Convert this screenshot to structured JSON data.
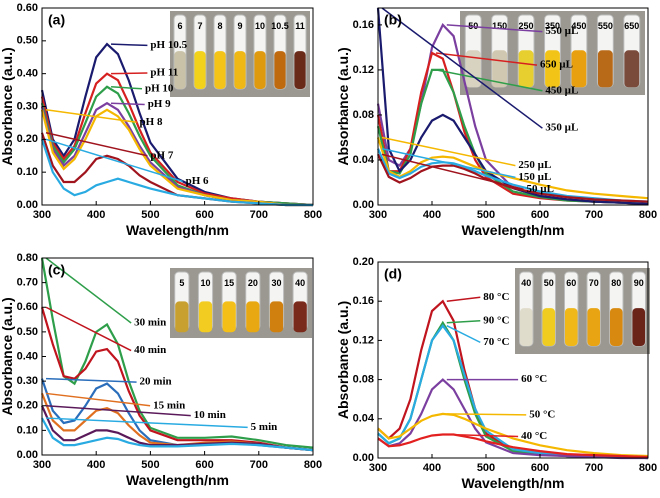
{
  "chart_data": [
    {
      "type": "line",
      "label": "(a)",
      "y_label": "Absorbance (a.u.)",
      "x_label": "Wavelength/nm",
      "inset_labels": [
        "6",
        "7",
        "8",
        "9",
        "10",
        "10.5",
        "11"
      ],
      "x": [
        300,
        320,
        340,
        360,
        380,
        400,
        420,
        440,
        460,
        480,
        500,
        550,
        600,
        650,
        700,
        750,
        800
      ],
      "xlim": [
        300,
        800
      ],
      "xticks": [
        300,
        400,
        500,
        600,
        700,
        800
      ],
      "ylim": [
        0,
        0.6
      ],
      "yticks": [
        {
          "value": 0,
          "label": "0.00"
        },
        {
          "value": 0.1,
          "label": "0.10"
        },
        {
          "value": 0.2,
          "label": "0.20"
        },
        {
          "value": 0.3,
          "label": "0.30"
        },
        {
          "value": 0.4,
          "label": "0.40"
        },
        {
          "value": 0.5,
          "label": "0.50"
        },
        {
          "value": 0.6,
          "label": "0.60"
        }
      ],
      "series": [
        {
          "name": "pH 10.5",
          "color": "#1a1a6e",
          "values": [
            0.35,
            0.2,
            0.15,
            0.2,
            0.33,
            0.45,
            0.49,
            0.46,
            0.38,
            0.28,
            0.19,
            0.08,
            0.04,
            0.02,
            0.01,
            0.005,
            0
          ]
        },
        {
          "name": "pH 11",
          "color": "#d62020",
          "values": [
            0.33,
            0.19,
            0.14,
            0.18,
            0.28,
            0.37,
            0.4,
            0.38,
            0.31,
            0.23,
            0.16,
            0.07,
            0.035,
            0.02,
            0.01,
            0.005,
            0
          ]
        },
        {
          "name": "pH 10",
          "color": "#2e9e4a",
          "values": [
            0.31,
            0.18,
            0.13,
            0.17,
            0.25,
            0.33,
            0.36,
            0.34,
            0.28,
            0.21,
            0.15,
            0.06,
            0.03,
            0.015,
            0.01,
            0.005,
            0
          ]
        },
        {
          "name": "pH 9",
          "color": "#7b3fa0",
          "values": [
            0.3,
            0.17,
            0.12,
            0.15,
            0.22,
            0.29,
            0.31,
            0.29,
            0.24,
            0.18,
            0.13,
            0.055,
            0.03,
            0.015,
            0.01,
            0,
            0
          ]
        },
        {
          "name": "pH 8",
          "color": "#f5b800",
          "values": [
            0.29,
            0.16,
            0.11,
            0.14,
            0.2,
            0.27,
            0.29,
            0.27,
            0.23,
            0.17,
            0.12,
            0.05,
            0.03,
            0.015,
            0.01,
            0,
            0
          ]
        },
        {
          "name": "pH 7",
          "color": "#a0141e",
          "values": [
            0.22,
            0.12,
            0.07,
            0.07,
            0.1,
            0.14,
            0.15,
            0.14,
            0.12,
            0.09,
            0.07,
            0.03,
            0.02,
            0.01,
            0.005,
            0,
            0
          ]
        },
        {
          "name": "pH 6",
          "color": "#29abe2",
          "values": [
            0.2,
            0.1,
            0.05,
            0.03,
            0.04,
            0.06,
            0.07,
            0.08,
            0.07,
            0.06,
            0.05,
            0.03,
            0.02,
            0.01,
            0.005,
            0,
            0
          ]
        }
      ]
    },
    {
      "type": "line",
      "label": "(b)",
      "y_label": "Absorbance (a.u.)",
      "x_label": "Wavelength/nm",
      "inset_labels": [
        "50",
        "150",
        "250",
        "350",
        "450",
        "550",
        "650"
      ],
      "x": [
        300,
        320,
        340,
        360,
        380,
        400,
        420,
        440,
        460,
        480,
        500,
        550,
        600,
        650,
        700,
        750,
        800
      ],
      "xlim": [
        300,
        800
      ],
      "xticks": [
        300,
        400,
        500,
        600,
        700,
        800
      ],
      "ylim": [
        0,
        0.175
      ],
      "yticks": [
        {
          "value": 0,
          "label": "0.00"
        },
        {
          "value": 0.04,
          "label": "0.04"
        },
        {
          "value": 0.08,
          "label": "0.08"
        },
        {
          "value": 0.12,
          "label": "0.12"
        },
        {
          "value": 0.16,
          "label": "0.16"
        }
      ],
      "series": [
        {
          "name": "550 µL",
          "color": "#7b3fa0",
          "values": [
            0.09,
            0.04,
            0.035,
            0.05,
            0.09,
            0.14,
            0.16,
            0.15,
            0.11,
            0.07,
            0.04,
            0.015,
            0.008,
            0.005,
            0.003,
            0.002,
            0.001
          ]
        },
        {
          "name": "650 µL",
          "color": "#d62020",
          "values": [
            0.08,
            0.03,
            0.03,
            0.05,
            0.1,
            0.135,
            0.13,
            0.1,
            0.065,
            0.04,
            0.025,
            0.01,
            0.006,
            0.004,
            0.003,
            0.002,
            0.001
          ]
        },
        {
          "name": "450 µL",
          "color": "#2e9e4a",
          "values": [
            0.07,
            0.03,
            0.028,
            0.045,
            0.09,
            0.12,
            0.12,
            0.1,
            0.07,
            0.045,
            0.028,
            0.012,
            0.007,
            0.004,
            0.003,
            0.002,
            0.001
          ]
        },
        {
          "name": "350 µL",
          "color": "#1a1a6e",
          "values": [
            0.175,
            0.05,
            0.03,
            0.04,
            0.06,
            0.075,
            0.08,
            0.075,
            0.06,
            0.045,
            0.03,
            0.015,
            0.008,
            0.005,
            0.003,
            0.002,
            0.001
          ]
        },
        {
          "name": "250 µL",
          "color": "#f5b800",
          "values": [
            0.06,
            0.03,
            0.025,
            0.03,
            0.038,
            0.042,
            0.043,
            0.042,
            0.038,
            0.034,
            0.03,
            0.024,
            0.018,
            0.013,
            0.01,
            0.008,
            0.006
          ]
        },
        {
          "name": "150 µL",
          "color": "#29abe2",
          "values": [
            0.05,
            0.028,
            0.024,
            0.028,
            0.034,
            0.037,
            0.038,
            0.037,
            0.034,
            0.03,
            0.026,
            0.018,
            0.012,
            0.008,
            0.006,
            0.004,
            0.003
          ]
        },
        {
          "name": "50 µL",
          "color": "#a0141e",
          "values": [
            0.045,
            0.025,
            0.02,
            0.024,
            0.03,
            0.034,
            0.035,
            0.035,
            0.032,
            0.028,
            0.023,
            0.015,
            0.01,
            0.007,
            0.005,
            0.004,
            0.003
          ]
        }
      ]
    },
    {
      "type": "line",
      "label": "(c)",
      "y_label": "Absorbance (a.u.)",
      "x_label": "Wavelength/nm",
      "inset_labels": [
        "5",
        "10",
        "15",
        "20",
        "30",
        "40"
      ],
      "x": [
        300,
        320,
        340,
        360,
        380,
        400,
        420,
        440,
        460,
        480,
        500,
        550,
        600,
        650,
        700,
        750,
        800
      ],
      "xlim": [
        300,
        800
      ],
      "xticks": [
        300,
        400,
        500,
        600,
        700,
        800
      ],
      "ylim": [
        0,
        0.8
      ],
      "yticks": [
        {
          "value": 0,
          "label": "0.00"
        },
        {
          "value": 0.1,
          "label": "0.10"
        },
        {
          "value": 0.2,
          "label": "0.20"
        },
        {
          "value": 0.3,
          "label": "0.30"
        },
        {
          "value": 0.4,
          "label": "0.40"
        },
        {
          "value": 0.5,
          "label": "0.50"
        },
        {
          "value": 0.6,
          "label": "0.60"
        },
        {
          "value": 0.7,
          "label": "0.70"
        },
        {
          "value": 0.8,
          "label": "0.80"
        }
      ],
      "series": [
        {
          "name": "30 min",
          "color": "#2e9e4a",
          "values": [
            0.8,
            0.55,
            0.32,
            0.29,
            0.38,
            0.5,
            0.53,
            0.45,
            0.3,
            0.18,
            0.11,
            0.07,
            0.07,
            0.075,
            0.06,
            0.04,
            0.03
          ]
        },
        {
          "name": "40 min",
          "color": "#c0141e",
          "values": [
            0.6,
            0.45,
            0.32,
            0.31,
            0.35,
            0.42,
            0.43,
            0.38,
            0.26,
            0.16,
            0.1,
            0.06,
            0.06,
            0.06,
            0.05,
            0.03,
            0.02
          ]
        },
        {
          "name": "20 min",
          "color": "#2a6ebb",
          "values": [
            0.31,
            0.18,
            0.13,
            0.14,
            0.2,
            0.27,
            0.29,
            0.25,
            0.17,
            0.1,
            0.06,
            0.04,
            0.045,
            0.05,
            0.04,
            0.03,
            0.02
          ]
        },
        {
          "name": "15 min",
          "color": "#e07020",
          "values": [
            0.25,
            0.14,
            0.1,
            0.1,
            0.14,
            0.18,
            0.19,
            0.17,
            0.12,
            0.08,
            0.05,
            0.04,
            0.05,
            0.055,
            0.045,
            0.03,
            0.02
          ]
        },
        {
          "name": "10 min",
          "color": "#5a1a5a",
          "values": [
            0.2,
            0.1,
            0.06,
            0.06,
            0.08,
            0.1,
            0.1,
            0.09,
            0.07,
            0.05,
            0.04,
            0.04,
            0.045,
            0.05,
            0.045,
            0.03,
            0.02
          ]
        },
        {
          "name": "5 min",
          "color": "#29abe2",
          "values": [
            0.15,
            0.07,
            0.04,
            0.04,
            0.05,
            0.06,
            0.07,
            0.065,
            0.05,
            0.04,
            0.035,
            0.035,
            0.04,
            0.045,
            0.04,
            0.03,
            0.02
          ]
        }
      ]
    },
    {
      "type": "line",
      "label": "(d)",
      "y_label": "Absorbance (a.u.)",
      "x_label": "Wavelength/nm",
      "inset_labels": [
        "40",
        "50",
        "60",
        "70",
        "80",
        "90"
      ],
      "x": [
        300,
        320,
        340,
        360,
        380,
        400,
        420,
        440,
        460,
        480,
        500,
        550,
        600,
        650,
        700,
        750,
        800
      ],
      "xlim": [
        300,
        800
      ],
      "xticks": [
        300,
        400,
        500,
        600,
        700,
        800
      ],
      "ylim": [
        0,
        0.2
      ],
      "yticks": [
        {
          "value": 0,
          "label": "0.00"
        },
        {
          "value": 0.04,
          "label": "0.04"
        },
        {
          "value": 0.08,
          "label": "0.08"
        },
        {
          "value": 0.12,
          "label": "0.12"
        },
        {
          "value": 0.16,
          "label": "0.16"
        },
        {
          "value": 0.2,
          "label": "0.20"
        }
      ],
      "series": [
        {
          "name": "80 °C",
          "color": "#c0141e",
          "values": [
            0.03,
            0.02,
            0.03,
            0.06,
            0.11,
            0.15,
            0.16,
            0.14,
            0.09,
            0.05,
            0.025,
            0.008,
            0.004,
            0.002,
            0.001,
            0.001,
            0
          ]
        },
        {
          "name": "90 °C",
          "color": "#2e9e4a",
          "values": [
            0.025,
            0.015,
            0.02,
            0.04,
            0.08,
            0.12,
            0.138,
            0.12,
            0.08,
            0.045,
            0.022,
            0.007,
            0.004,
            0.002,
            0.001,
            0.001,
            0
          ]
        },
        {
          "name": "70 °C",
          "color": "#29abe2",
          "values": [
            0.025,
            0.015,
            0.02,
            0.04,
            0.08,
            0.12,
            0.135,
            0.12,
            0.085,
            0.05,
            0.028,
            0.009,
            0.005,
            0.002,
            0.001,
            0.001,
            0
          ]
        },
        {
          "name": "60 °C",
          "color": "#7b3fa0",
          "values": [
            0.02,
            0.012,
            0.015,
            0.025,
            0.045,
            0.07,
            0.08,
            0.07,
            0.05,
            0.03,
            0.016,
            0.005,
            0.003,
            0.002,
            0.001,
            0,
            0
          ]
        },
        {
          "name": "50 °C",
          "color": "#f5b800",
          "values": [
            0.03,
            0.02,
            0.022,
            0.03,
            0.038,
            0.043,
            0.045,
            0.044,
            0.04,
            0.035,
            0.03,
            0.02,
            0.013,
            0.008,
            0.005,
            0.003,
            0.002
          ]
        },
        {
          "name": "40 °C",
          "color": "#e32020",
          "values": [
            0.02,
            0.012,
            0.013,
            0.016,
            0.02,
            0.023,
            0.024,
            0.024,
            0.022,
            0.02,
            0.017,
            0.011,
            0.007,
            0.004,
            0.003,
            0.002,
            0.001
          ]
        }
      ]
    }
  ]
}
